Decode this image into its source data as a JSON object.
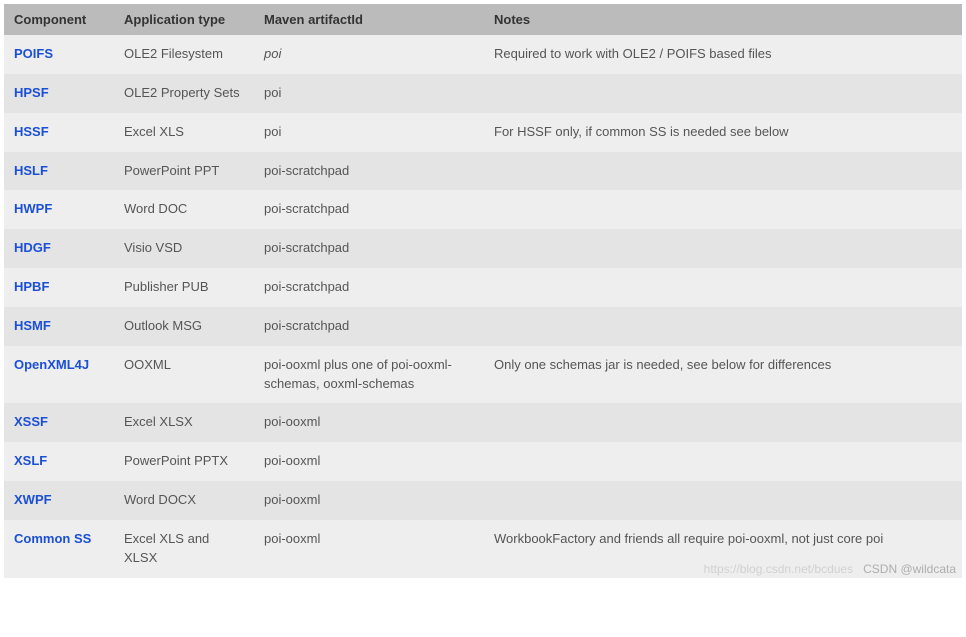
{
  "table": {
    "columns": [
      {
        "key": "component",
        "label": "Component"
      },
      {
        "key": "apptype",
        "label": "Application type"
      },
      {
        "key": "artifact",
        "label": "Maven artifactId"
      },
      {
        "key": "notes",
        "label": "Notes"
      }
    ],
    "rows": [
      {
        "component": "POIFS",
        "apptype": "OLE2 Filesystem",
        "artifact": "poi",
        "artifact_italic": true,
        "notes": "Required to work with OLE2 / POIFS based files"
      },
      {
        "component": "HPSF",
        "apptype": "OLE2 Property Sets",
        "artifact": "poi",
        "notes": ""
      },
      {
        "component": "HSSF",
        "apptype": "Excel XLS",
        "artifact": "poi",
        "notes": "For HSSF only, if common SS is needed see below"
      },
      {
        "component": "HSLF",
        "apptype": "PowerPoint PPT",
        "artifact": "poi-scratchpad",
        "notes": ""
      },
      {
        "component": "HWPF",
        "apptype": "Word DOC",
        "artifact": "poi-scratchpad",
        "notes": ""
      },
      {
        "component": "HDGF",
        "apptype": "Visio VSD",
        "artifact": "poi-scratchpad",
        "notes": ""
      },
      {
        "component": "HPBF",
        "apptype": "Publisher PUB",
        "artifact": "poi-scratchpad",
        "notes": ""
      },
      {
        "component": "HSMF",
        "apptype": "Outlook MSG",
        "artifact": "poi-scratchpad",
        "notes": ""
      },
      {
        "component": "OpenXML4J",
        "apptype": "OOXML",
        "artifact": "poi-ooxml plus one of poi-ooxml-schemas, ooxml-schemas",
        "notes": "Only one schemas jar is needed, see below for differences"
      },
      {
        "component": "XSSF",
        "apptype": "Excel XLSX",
        "artifact": "poi-ooxml",
        "notes": ""
      },
      {
        "component": "XSLF",
        "apptype": "PowerPoint PPTX",
        "artifact": "poi-ooxml",
        "notes": ""
      },
      {
        "component": "XWPF",
        "apptype": "Word DOCX",
        "artifact": "poi-ooxml",
        "notes": ""
      },
      {
        "component": "Common SS",
        "apptype": "Excel XLS and XLSX",
        "artifact": "poi-ooxml",
        "notes": "WorkbookFactory and friends all require poi-ooxml, not just core poi"
      }
    ]
  },
  "watermark": {
    "faint": "https://blog.csdn.net/bcdues",
    "main": "CSDN @wildcata"
  }
}
